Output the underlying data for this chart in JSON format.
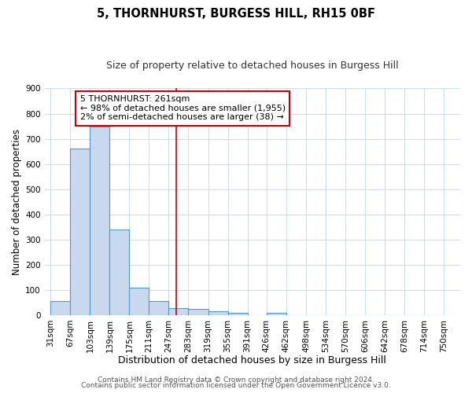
{
  "title": "5, THORNHURST, BURGESS HILL, RH15 0BF",
  "subtitle": "Size of property relative to detached houses in Burgess Hill",
  "xlabel": "Distribution of detached houses by size in Burgess Hill",
  "ylabel": "Number of detached properties",
  "bar_left_edges": [
    31,
    67,
    103,
    139,
    175,
    211,
    247,
    283,
    319,
    355,
    391,
    426,
    462,
    498,
    534,
    570,
    606,
    642,
    678,
    714
  ],
  "bar_widths": [
    36,
    36,
    36,
    36,
    36,
    36,
    36,
    36,
    36,
    36,
    35,
    36,
    36,
    36,
    36,
    36,
    36,
    36,
    36,
    36
  ],
  "bar_heights": [
    55,
    660,
    750,
    340,
    110,
    55,
    28,
    25,
    15,
    10,
    0,
    10,
    0,
    0,
    0,
    0,
    0,
    0,
    0,
    0
  ],
  "bar_color": "#c8d8ee",
  "bar_edge_color": "#5599cc",
  "bar_linewidth": 0.8,
  "x_tick_labels": [
    "31sqm",
    "67sqm",
    "103sqm",
    "139sqm",
    "175sqm",
    "211sqm",
    "247sqm",
    "283sqm",
    "319sqm",
    "355sqm",
    "391sqm",
    "426sqm",
    "462sqm",
    "498sqm",
    "534sqm",
    "570sqm",
    "606sqm",
    "642sqm",
    "678sqm",
    "714sqm",
    "750sqm"
  ],
  "x_tick_positions": [
    31,
    67,
    103,
    139,
    175,
    211,
    247,
    283,
    319,
    355,
    391,
    426,
    462,
    498,
    534,
    570,
    606,
    642,
    678,
    714,
    750
  ],
  "ylim": [
    0,
    900
  ],
  "xlim": [
    20,
    780
  ],
  "yticks": [
    0,
    100,
    200,
    300,
    400,
    500,
    600,
    700,
    800,
    900
  ],
  "property_line_x": 261,
  "property_line_color": "#cc0000",
  "annotation_text": "5 THORNHURST: 261sqm\n← 98% of detached houses are smaller (1,955)\n2% of semi-detached houses are larger (38) →",
  "annotation_box_color": "#ffffff",
  "annotation_box_edge_color": "#cc0000",
  "footer_line1": "Contains HM Land Registry data © Crown copyright and database right 2024.",
  "footer_line2": "Contains public sector information licensed under the Open Government Licence v3.0.",
  "bg_color": "#ffffff",
  "plot_bg_color": "#ffffff",
  "grid_color": "#ccddee",
  "title_fontsize": 10.5,
  "subtitle_fontsize": 9,
  "xlabel_fontsize": 9,
  "ylabel_fontsize": 8.5,
  "tick_fontsize": 7.5,
  "annotation_fontsize": 8,
  "footer_fontsize": 6.5
}
